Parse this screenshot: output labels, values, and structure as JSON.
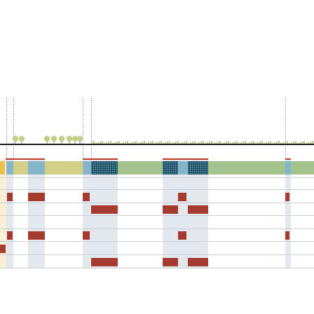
{
  "colors": {
    "background": "#ffffff",
    "ground_line": "#1a1a1a",
    "yellow_segment": "#d4cf86",
    "blue_segment": "#86b4c8",
    "green_segment": "#a3c28e",
    "patterned_segment": "#1f4f66",
    "pattern_dot": "#7fb0c6",
    "red_block": "#a53a2f",
    "red_accent_line": "#c0392b",
    "column_shade": "#e3e8ef",
    "grid_line": "#cfcfcf",
    "guide_line": "#7a7a7a",
    "tree": "#c4ce8a",
    "small_tree": "#b9c98a",
    "left_highlight": "#f6f0d8",
    "left_bar": "#e8c24a"
  },
  "rows": 6,
  "segments": [
    {
      "kind": "left_bar"
    },
    {
      "kind": "blue"
    },
    {
      "kind": "yellow"
    },
    {
      "kind": "blue"
    },
    {
      "kind": "yellow"
    },
    {
      "kind": "blue"
    },
    {
      "kind": "patterned"
    },
    {
      "kind": "green"
    },
    {
      "kind": "patterned"
    },
    {
      "kind": "blue"
    },
    {
      "kind": "patterned"
    },
    {
      "kind": "green"
    },
    {
      "kind": "blue"
    },
    {
      "kind": "green"
    }
  ],
  "icons": {
    "tree": "tree-icon",
    "guide": "guide-line"
  }
}
